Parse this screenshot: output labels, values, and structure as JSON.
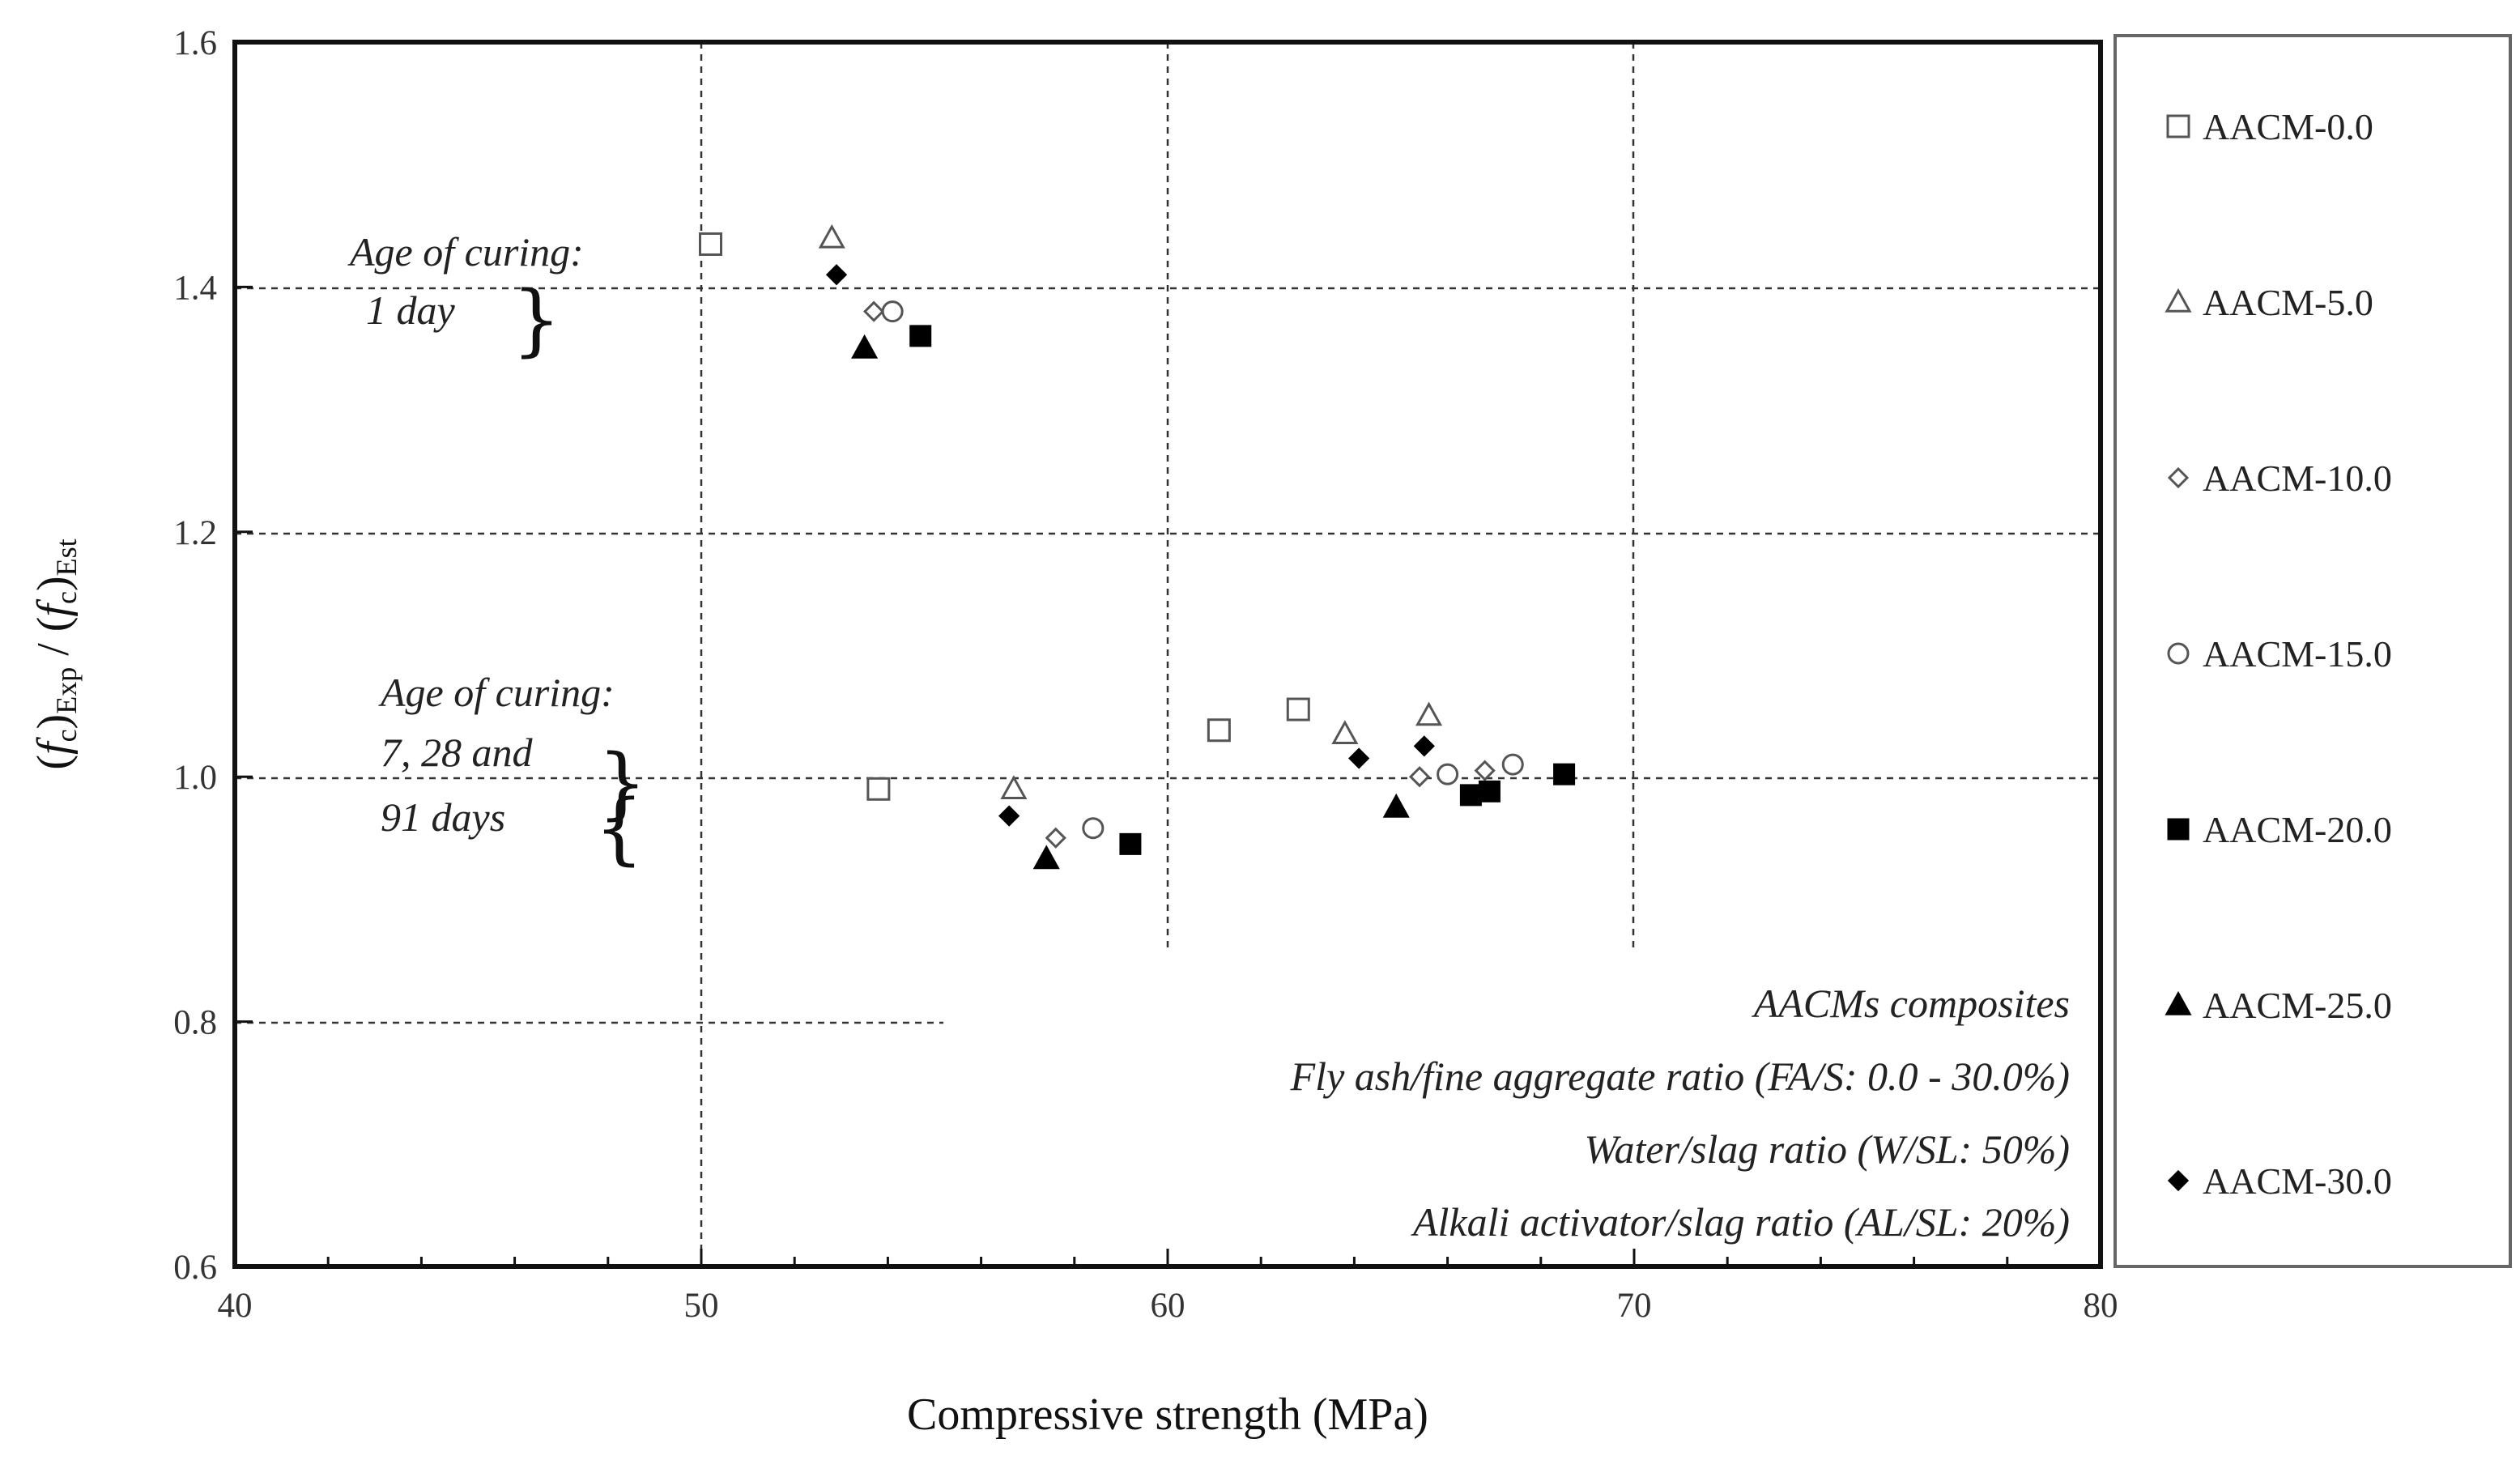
{
  "chart_data": {
    "type": "scatter",
    "xlabel": "Compressive strength (MPa)",
    "ylabel_parts": [
      "(",
      "f",
      "c",
      ")",
      "Exp",
      " / (",
      "f",
      "c",
      ")",
      "Est"
    ],
    "xlim": [
      40,
      80
    ],
    "ylim": [
      0.6,
      1.6
    ],
    "x_ticks": [
      40,
      50,
      60,
      70,
      80
    ],
    "y_ticks": [
      "0.6",
      "0.8",
      "1.0",
      "1.2",
      "1.4",
      "1.6"
    ],
    "grid": "partial dashed",
    "legend_placement": "right, outside plot",
    "series": [
      {
        "name": "AACM-0.0",
        "marker": "square-open",
        "points": [
          [
            50.2,
            1.435
          ],
          [
            53.8,
            0.99
          ],
          [
            61.1,
            1.038
          ],
          [
            62.8,
            1.055
          ]
        ]
      },
      {
        "name": "AACM-5.0",
        "marker": "triangle-open",
        "points": [
          [
            52.8,
            1.44
          ],
          [
            56.7,
            0.99
          ],
          [
            63.8,
            1.035
          ],
          [
            65.6,
            1.05
          ]
        ]
      },
      {
        "name": "AACM-10.0",
        "marker": "diamond-open",
        "points": [
          [
            53.7,
            1.38
          ],
          [
            57.6,
            0.95
          ],
          [
            65.4,
            1.0
          ],
          [
            66.8,
            1.005
          ]
        ]
      },
      {
        "name": "AACM-15.0",
        "marker": "circle-open",
        "points": [
          [
            54.1,
            1.38
          ],
          [
            58.4,
            0.958
          ],
          [
            66.0,
            1.002
          ],
          [
            67.4,
            1.01
          ]
        ]
      },
      {
        "name": "AACM-20.0",
        "marker": "square-filled",
        "points": [
          [
            54.7,
            1.36
          ],
          [
            59.2,
            0.945
          ],
          [
            66.5,
            0.985
          ],
          [
            66.9,
            0.988
          ],
          [
            68.5,
            1.002
          ]
        ]
      },
      {
        "name": "AACM-25.0",
        "marker": "triangle-filled",
        "points": [
          [
            53.5,
            1.35
          ],
          [
            57.4,
            0.933
          ],
          [
            64.9,
            0.975
          ]
        ]
      },
      {
        "name": "AACM-30.0",
        "marker": "diamond-filled",
        "points": [
          [
            52.9,
            1.41
          ],
          [
            56.6,
            0.968
          ],
          [
            64.1,
            1.015
          ],
          [
            65.5,
            1.025
          ]
        ]
      }
    ],
    "annotations": {
      "age1_line1": "Age of curing:",
      "age1_line2": "1 day",
      "age2_line1": "Age of curing:",
      "age2_line2": "7, 28 and",
      "age2_line3": "91 days",
      "note_line1": "AACMs composites",
      "note_line2": "Fly ash/fine aggregate ratio (FA/S: 0.0 - 30.0%)",
      "note_line3": "Water/slag ratio (W/SL: 50%)",
      "note_line4": "Alkali activator/slag ratio (AL/SL: 20%)"
    }
  }
}
